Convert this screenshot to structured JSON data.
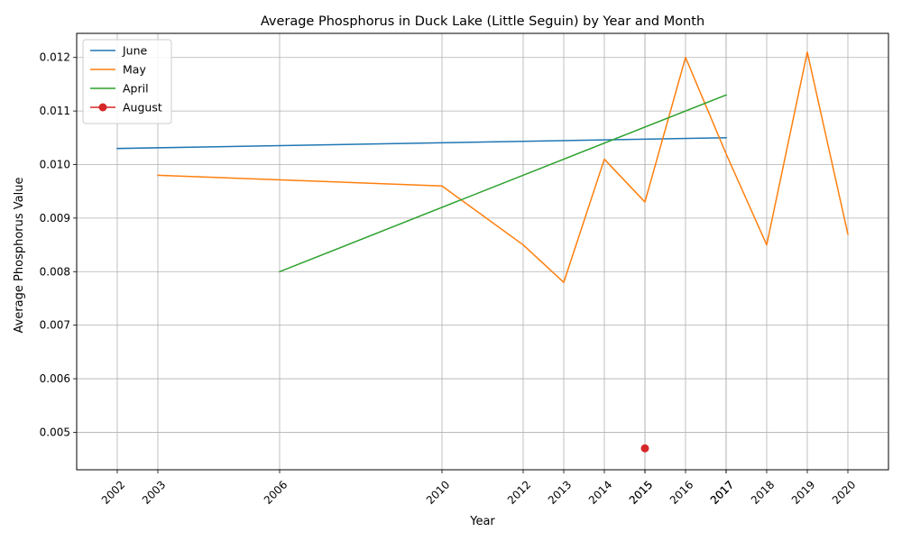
{
  "chart_data": {
    "type": "line",
    "title": "Average Phosphorus in Duck Lake (Little Seguin) by Year and Month",
    "xlabel": "Year",
    "ylabel": "Average Phosphorus Value",
    "xlim": [
      2001.0,
      2021.0
    ],
    "ylim": [
      0.0043,
      0.01245
    ],
    "x_tick_labels": [
      "2002",
      "2003",
      "2006",
      "2010",
      "2012",
      "2013",
      "2014",
      "2015",
      "2016",
      "2017",
      "2018",
      "2019",
      "2020"
    ],
    "y_tick_labels": [
      "0.005",
      "0.006",
      "0.007",
      "0.008",
      "0.009",
      "0.010",
      "0.011",
      "0.012"
    ],
    "grid": true,
    "legend_position": "upper-left",
    "series": [
      {
        "name": "June",
        "color": "#1f77b4",
        "marker": "none",
        "x": [
          2002,
          2017
        ],
        "values": [
          0.0103,
          0.0105
        ]
      },
      {
        "name": "May",
        "color": "#ff7f0e",
        "marker": "none",
        "x": [
          2003,
          2010,
          2012,
          2013,
          2014,
          2015,
          2016,
          2017,
          2018,
          2019,
          2020
        ],
        "values": [
          0.0098,
          0.0096,
          0.0085,
          0.0078,
          0.0101,
          0.0093,
          0.012,
          0.0102,
          0.0085,
          0.0121,
          0.0087
        ]
      },
      {
        "name": "April",
        "color": "#2ca02c",
        "marker": "none",
        "x": [
          2006,
          2017
        ],
        "values": [
          0.008,
          0.0113
        ]
      },
      {
        "name": "August",
        "color": "#d62728",
        "marker": "circle",
        "x": [
          2015
        ],
        "values": [
          0.0047
        ]
      }
    ]
  }
}
